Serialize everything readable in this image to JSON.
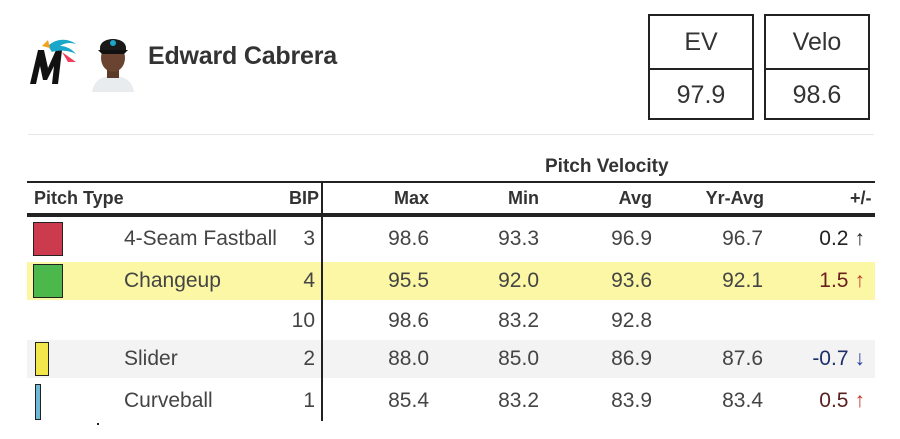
{
  "player": {
    "name": "Edward Cabrera",
    "team_logo": "marlins-logo-icon",
    "headshot": "player-headshot"
  },
  "summary_boxes": [
    {
      "label": "EV",
      "value": "97.9"
    },
    {
      "label": "Velo",
      "value": "98.6"
    }
  ],
  "table": {
    "group_title": "Pitch Velocity",
    "headers": {
      "pitch_type": "Pitch Type",
      "bip": "BIP",
      "max": "Max",
      "min": "Min",
      "avg": "Avg",
      "yr_avg": "Yr-Avg",
      "diff": "+/-"
    },
    "rows": [
      {
        "color": "#cc3b4d",
        "name": "4-Seam Fastball",
        "bip": "3",
        "max": "98.6",
        "min": "93.3",
        "avg": "96.9",
        "yr_avg": "96.7",
        "diff": "0.2",
        "arrow": "↑",
        "diff_color": "#222222",
        "arrow_color": "#222222"
      },
      {
        "color": "#4cb84c",
        "name": "Changeup",
        "bip": "4",
        "max": "95.5",
        "min": "92.0",
        "avg": "93.6",
        "yr_avg": "92.1",
        "diff": "1.5",
        "arrow": "↑",
        "diff_color": "#6b2020",
        "arrow_color": "#c0392b"
      },
      {
        "color": "",
        "name": "",
        "bip": "10",
        "max": "98.6",
        "min": "83.2",
        "avg": "92.8",
        "yr_avg": "",
        "diff": "",
        "arrow": "",
        "diff_color": "#222222",
        "arrow_color": "#222222"
      },
      {
        "color": "#f2e64a",
        "name": "Slider",
        "bip": "2",
        "max": "88.0",
        "min": "85.0",
        "avg": "86.9",
        "yr_avg": "87.6",
        "diff": "-0.7",
        "arrow": "↓",
        "diff_color": "#1f2f6b",
        "arrow_color": "#1f3f9b"
      },
      {
        "color": "#6fb9d8",
        "name": "Curveball",
        "bip": "1",
        "max": "85.4",
        "min": "83.2",
        "avg": "83.9",
        "yr_avg": "83.4",
        "diff": "0.5",
        "arrow": "↑",
        "diff_color": "#5a1f1f",
        "arrow_color": "#c0392b"
      }
    ]
  }
}
